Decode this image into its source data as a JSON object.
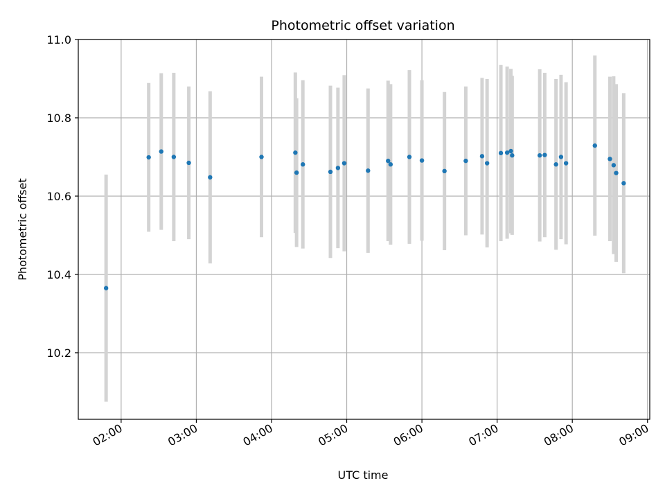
{
  "chart_data": {
    "type": "scatter",
    "title": "Photometric offset variation",
    "xlabel": "UTC time",
    "ylabel": "Photometric offset",
    "x_ticks": [
      "02:00",
      "03:00",
      "04:00",
      "05:00",
      "06:00",
      "07:00",
      "08:00",
      "09:00"
    ],
    "y_ticks": [
      "10.2",
      "10.4",
      "10.6",
      "10.8",
      "11.0"
    ],
    "xlim_hours": [
      1.43,
      9.03
    ],
    "ylim": [
      10.03,
      11.0
    ],
    "grid": true,
    "legend": "none",
    "colors": {
      "point": "#1f77b4",
      "errorbar": "#d3d3d3",
      "grid": "#b0b0b0"
    },
    "points": [
      {
        "t": "01:48",
        "y": 10.365,
        "err": 0.29
      },
      {
        "t": "02:22",
        "y": 10.699,
        "err": 0.19
      },
      {
        "t": "02:32",
        "y": 10.714,
        "err": 0.2
      },
      {
        "t": "02:42",
        "y": 10.7,
        "err": 0.215
      },
      {
        "t": "02:54",
        "y": 10.685,
        "err": 0.195
      },
      {
        "t": "03:11",
        "y": 10.648,
        "err": 0.22
      },
      {
        "t": "03:52",
        "y": 10.7,
        "err": 0.205
      },
      {
        "t": "04:19",
        "y": 10.711,
        "err": 0.205
      },
      {
        "t": "04:20",
        "y": 10.66,
        "err": 0.19
      },
      {
        "t": "04:25",
        "y": 10.681,
        "err": 0.215
      },
      {
        "t": "04:47",
        "y": 10.662,
        "err": 0.22
      },
      {
        "t": "04:53",
        "y": 10.672,
        "err": 0.205
      },
      {
        "t": "04:58",
        "y": 10.684,
        "err": 0.225
      },
      {
        "t": "05:17",
        "y": 10.665,
        "err": 0.21
      },
      {
        "t": "05:33",
        "y": 10.69,
        "err": 0.205
      },
      {
        "t": "05:35",
        "y": 10.681,
        "err": 0.205
      },
      {
        "t": "05:50",
        "y": 10.7,
        "err": 0.222
      },
      {
        "t": "06:00",
        "y": 10.691,
        "err": 0.205
      },
      {
        "t": "06:18",
        "y": 10.664,
        "err": 0.202
      },
      {
        "t": "06:35",
        "y": 10.69,
        "err": 0.19
      },
      {
        "t": "06:48",
        "y": 10.702,
        "err": 0.2
      },
      {
        "t": "06:52",
        "y": 10.684,
        "err": 0.215
      },
      {
        "t": "07:03",
        "y": 10.71,
        "err": 0.225
      },
      {
        "t": "07:08",
        "y": 10.711,
        "err": 0.22
      },
      {
        "t": "07:11",
        "y": 10.715,
        "err": 0.21
      },
      {
        "t": "07:12",
        "y": 10.704,
        "err": 0.203
      },
      {
        "t": "07:34",
        "y": 10.704,
        "err": 0.22
      },
      {
        "t": "07:38",
        "y": 10.705,
        "err": 0.21
      },
      {
        "t": "07:47",
        "y": 10.681,
        "err": 0.218
      },
      {
        "t": "07:51",
        "y": 10.7,
        "err": 0.21
      },
      {
        "t": "07:55",
        "y": 10.684,
        "err": 0.207
      },
      {
        "t": "08:18",
        "y": 10.729,
        "err": 0.23
      },
      {
        "t": "08:30",
        "y": 10.695,
        "err": 0.21
      },
      {
        "t": "08:33",
        "y": 10.679,
        "err": 0.227
      },
      {
        "t": "08:35",
        "y": 10.659,
        "err": 0.227
      },
      {
        "t": "08:41",
        "y": 10.633,
        "err": 0.23
      }
    ]
  }
}
